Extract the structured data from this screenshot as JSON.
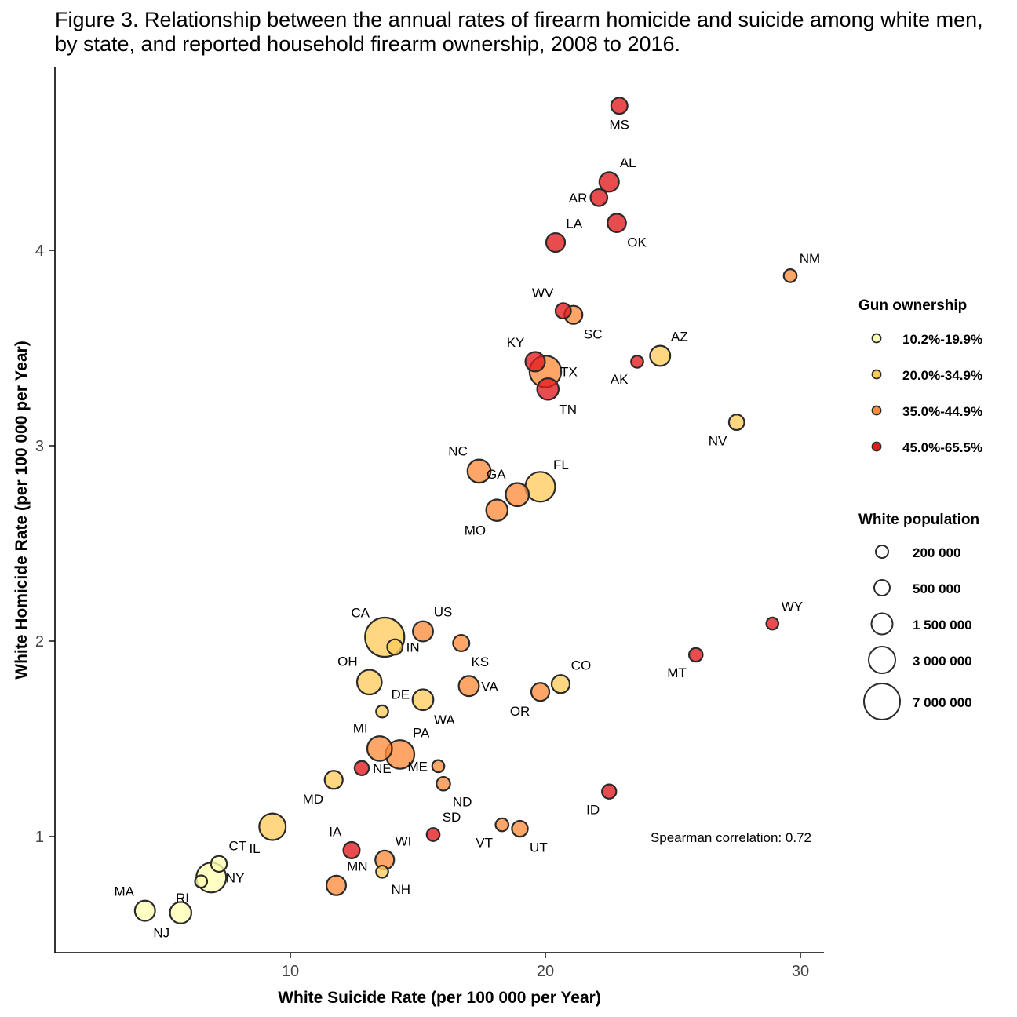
{
  "title_lines": [
    "Figure 3. Relationship between the annual rates of firearm homicide and suicide among white men,",
    "by state, and reported household firearm ownership, 2008 to 2016."
  ],
  "chart_data": {
    "type": "scatter",
    "xlabel": "White Suicide Rate (per 100 000 per Year)",
    "ylabel": "White Homicide Rate (per 100 000 per Year)",
    "xlim": [
      0.9,
      31
    ],
    "ylim": [
      0.42,
      4.9
    ],
    "xticks": [
      10,
      20,
      30
    ],
    "yticks": [
      1,
      2,
      3,
      4
    ],
    "grid": false,
    "annotation": "Spearman correlation: 0.72",
    "color_legend": {
      "title": "Gun ownership",
      "entries": [
        {
          "label": "10.2%-19.9%",
          "color": "#ffffb2"
        },
        {
          "label": "20.0%-34.9%",
          "color": "#fecc5c"
        },
        {
          "label": "35.0%-44.9%",
          "color": "#fd8d3c"
        },
        {
          "label": "45.0%-65.5%",
          "color": "#e31a1c"
        }
      ]
    },
    "size_legend": {
      "title": "White population",
      "entries": [
        {
          "label": "200 000",
          "value": 200000
        },
        {
          "label": "500 000",
          "value": 500000
        },
        {
          "label": "1 500 000",
          "value": 1500000
        },
        {
          "label": "3 000 000",
          "value": 3000000
        },
        {
          "label": "7 000 000",
          "value": 7000000
        }
      ]
    },
    "points": [
      {
        "label": "MS",
        "x": 22.9,
        "y": 4.74,
        "ownership": 3,
        "pop": 500000,
        "lp": "below"
      },
      {
        "label": "AL",
        "x": 22.5,
        "y": 4.35,
        "ownership": 3,
        "pop": 900000,
        "lp": "above-right"
      },
      {
        "label": "AR",
        "x": 22.1,
        "y": 4.27,
        "ownership": 3,
        "pop": 550000,
        "lp": "left"
      },
      {
        "label": "OK",
        "x": 22.8,
        "y": 4.14,
        "ownership": 3,
        "pop": 750000,
        "lp": "below-right"
      },
      {
        "label": "LA",
        "x": 20.4,
        "y": 4.04,
        "ownership": 3,
        "pop": 800000,
        "lp": "above-right"
      },
      {
        "label": "NM",
        "x": 29.6,
        "y": 3.87,
        "ownership": 2,
        "pop": 200000,
        "lp": "above-right"
      },
      {
        "label": "WV",
        "x": 20.7,
        "y": 3.69,
        "ownership": 3,
        "pop": 400000,
        "lp": "above-left"
      },
      {
        "label": "SC",
        "x": 21.1,
        "y": 3.67,
        "ownership": 2,
        "pop": 700000,
        "lp": "below-right"
      },
      {
        "label": "AZ",
        "x": 24.5,
        "y": 3.46,
        "ownership": 1,
        "pop": 1000000,
        "lp": "above-right"
      },
      {
        "label": "KY",
        "x": 19.6,
        "y": 3.43,
        "ownership": 3,
        "pop": 900000,
        "lp": "above-left"
      },
      {
        "label": "AK",
        "x": 23.6,
        "y": 3.43,
        "ownership": 3,
        "pop": 150000,
        "lp": "below-left"
      },
      {
        "label": "TX",
        "x": 20.0,
        "y": 3.38,
        "ownership": 2,
        "pop": 3500000,
        "lp": "right"
      },
      {
        "label": "TN",
        "x": 20.1,
        "y": 3.29,
        "ownership": 3,
        "pop": 1200000,
        "lp": "below-right"
      },
      {
        "label": "NV",
        "x": 27.5,
        "y": 3.12,
        "ownership": 1,
        "pop": 400000,
        "lp": "below-left"
      },
      {
        "label": "NC",
        "x": 17.4,
        "y": 2.87,
        "ownership": 2,
        "pop": 1500000,
        "lp": "above-left"
      },
      {
        "label": "FL",
        "x": 19.8,
        "y": 2.79,
        "ownership": 1,
        "pop": 3000000,
        "lp": "above-right"
      },
      {
        "label": "GA",
        "x": 18.9,
        "y": 2.75,
        "ownership": 2,
        "pop": 1500000,
        "lp": "above-left"
      },
      {
        "label": "MO",
        "x": 18.1,
        "y": 2.67,
        "ownership": 2,
        "pop": 1200000,
        "lp": "below-left"
      },
      {
        "label": "US",
        "x": 15.2,
        "y": 2.05,
        "ownership": 2,
        "pop": 1000000,
        "lp": "above-right"
      },
      {
        "label": "CA",
        "x": 13.7,
        "y": 2.02,
        "ownership": 1,
        "pop": 6000000,
        "lp": "above-left"
      },
      {
        "label": "IN",
        "x": 14.1,
        "y": 1.97,
        "ownership": 1,
        "pop": 400000,
        "lp": "right"
      },
      {
        "label": "KS",
        "x": 16.7,
        "y": 1.99,
        "ownership": 2,
        "pop": 500000,
        "lp": "below-right"
      },
      {
        "label": "WY",
        "x": 28.9,
        "y": 2.09,
        "ownership": 3,
        "pop": 150000,
        "lp": "above-right"
      },
      {
        "label": "MT",
        "x": 25.9,
        "y": 1.93,
        "ownership": 3,
        "pop": 250000,
        "lp": "below-left"
      },
      {
        "label": "OH",
        "x": 13.1,
        "y": 1.79,
        "ownership": 1,
        "pop": 1800000,
        "lp": "above-left"
      },
      {
        "label": "CO",
        "x": 20.6,
        "y": 1.78,
        "ownership": 1,
        "pop": 700000,
        "lp": "above-right"
      },
      {
        "label": "VA",
        "x": 17.0,
        "y": 1.77,
        "ownership": 2,
        "pop": 1000000,
        "lp": "right"
      },
      {
        "label": "OR",
        "x": 19.8,
        "y": 1.74,
        "ownership": 2,
        "pop": 700000,
        "lp": "below-left"
      },
      {
        "label": "WA",
        "x": 15.2,
        "y": 1.7,
        "ownership": 1,
        "pop": 1100000,
        "lp": "below-right"
      },
      {
        "label": "DE",
        "x": 13.6,
        "y": 1.64,
        "ownership": 1,
        "pop": 150000,
        "lp": "above-right"
      },
      {
        "label": "MI",
        "x": 13.5,
        "y": 1.45,
        "ownership": 2,
        "pop": 1800000,
        "lp": "above-left"
      },
      {
        "label": "PA",
        "x": 14.3,
        "y": 1.42,
        "ownership": 2,
        "pop": 2700000,
        "lp": "above-right"
      },
      {
        "label": "ME",
        "x": 15.8,
        "y": 1.36,
        "ownership": 2,
        "pop": 150000,
        "lp": "left"
      },
      {
        "label": "NE",
        "x": 12.8,
        "y": 1.35,
        "ownership": 3,
        "pop": 300000,
        "lp": "right"
      },
      {
        "label": "MD",
        "x": 11.7,
        "y": 1.29,
        "ownership": 1,
        "pop": 700000,
        "lp": "below-left"
      },
      {
        "label": "ND",
        "x": 16.0,
        "y": 1.27,
        "ownership": 2,
        "pop": 250000,
        "lp": "below-right"
      },
      {
        "label": "ID",
        "x": 22.5,
        "y": 1.23,
        "ownership": 3,
        "pop": 300000,
        "lp": "below-left"
      },
      {
        "label": "IL",
        "x": 9.3,
        "y": 1.05,
        "ownership": 1,
        "pop": 2200000,
        "lp": "below-left"
      },
      {
        "label": "SD",
        "x": 15.6,
        "y": 1.01,
        "ownership": 3,
        "pop": 200000,
        "lp": "above-right"
      },
      {
        "label": "VT",
        "x": 18.3,
        "y": 1.06,
        "ownership": 2,
        "pop": 200000,
        "lp": "below-left"
      },
      {
        "label": "UT",
        "x": 19.0,
        "y": 1.04,
        "ownership": 2,
        "pop": 450000,
        "lp": "below-right"
      },
      {
        "label": "IA",
        "x": 12.4,
        "y": 0.93,
        "ownership": 3,
        "pop": 500000,
        "lp": "above-left"
      },
      {
        "label": "WI",
        "x": 13.7,
        "y": 0.88,
        "ownership": 2,
        "pop": 800000,
        "lp": "above-right"
      },
      {
        "label": "CT",
        "x": 7.2,
        "y": 0.86,
        "ownership": 0,
        "pop": 450000,
        "lp": "above-right"
      },
      {
        "label": "NY",
        "x": 6.9,
        "y": 0.79,
        "ownership": 0,
        "pop": 3000000,
        "lp": "right"
      },
      {
        "label": "NH",
        "x": 13.6,
        "y": 0.82,
        "ownership": 1,
        "pop": 150000,
        "lp": "below-right"
      },
      {
        "label": "MN",
        "x": 11.8,
        "y": 0.75,
        "ownership": 2,
        "pop": 900000,
        "lp": "above-right"
      },
      {
        "label": "RI",
        "x": 6.5,
        "y": 0.77,
        "ownership": 0,
        "pop": 150000,
        "lp": "none"
      },
      {
        "label": "MA",
        "x": 4.3,
        "y": 0.62,
        "ownership": 0,
        "pop": 1000000,
        "lp": "above-left"
      },
      {
        "label": "NJ",
        "x": 5.7,
        "y": 0.61,
        "ownership": 0,
        "pop": 1200000,
        "lp": "above-right2"
      },
      {
        "label": "NJ",
        "x": 5.7,
        "y": 0.61,
        "ownership": 0,
        "pop": 0,
        "lp": "below-left"
      }
    ]
  }
}
